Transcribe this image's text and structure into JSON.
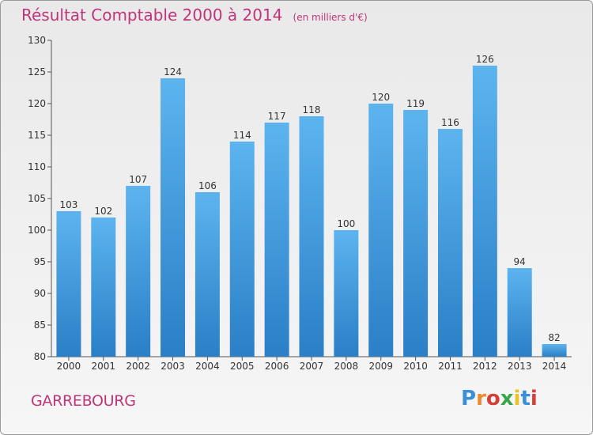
{
  "chart_data": {
    "type": "bar",
    "title": "Résultat Comptable 2000 à 2014",
    "subtitle": "(en milliers d'€)",
    "categories": [
      "2000",
      "2001",
      "2002",
      "2003",
      "2004",
      "2005",
      "2006",
      "2007",
      "2008",
      "2009",
      "2010",
      "2011",
      "2012",
      "2013",
      "2014"
    ],
    "values": [
      103,
      102,
      107,
      124,
      106,
      114,
      117,
      118,
      100,
      120,
      119,
      116,
      126,
      94,
      82
    ],
    "ylim": [
      80,
      130
    ],
    "yticks": [
      80,
      85,
      90,
      95,
      100,
      105,
      110,
      115,
      120,
      125,
      130
    ],
    "xlabel": "",
    "ylabel": "",
    "grid": false,
    "bar_color": "#4a9ee0"
  },
  "commune_name": "GARREBOURG",
  "logo": {
    "letters": [
      "P",
      "r",
      "o",
      "x",
      "i",
      "t",
      "i"
    ],
    "colors": [
      "#3b8fd6",
      "#e98b2a",
      "#d43f3a",
      "#3aa64a",
      "#e9c22a",
      "#3b8fd6",
      "#d43f3a"
    ]
  },
  "colors": {
    "accent": "#c0357a",
    "axis": "#555555"
  }
}
